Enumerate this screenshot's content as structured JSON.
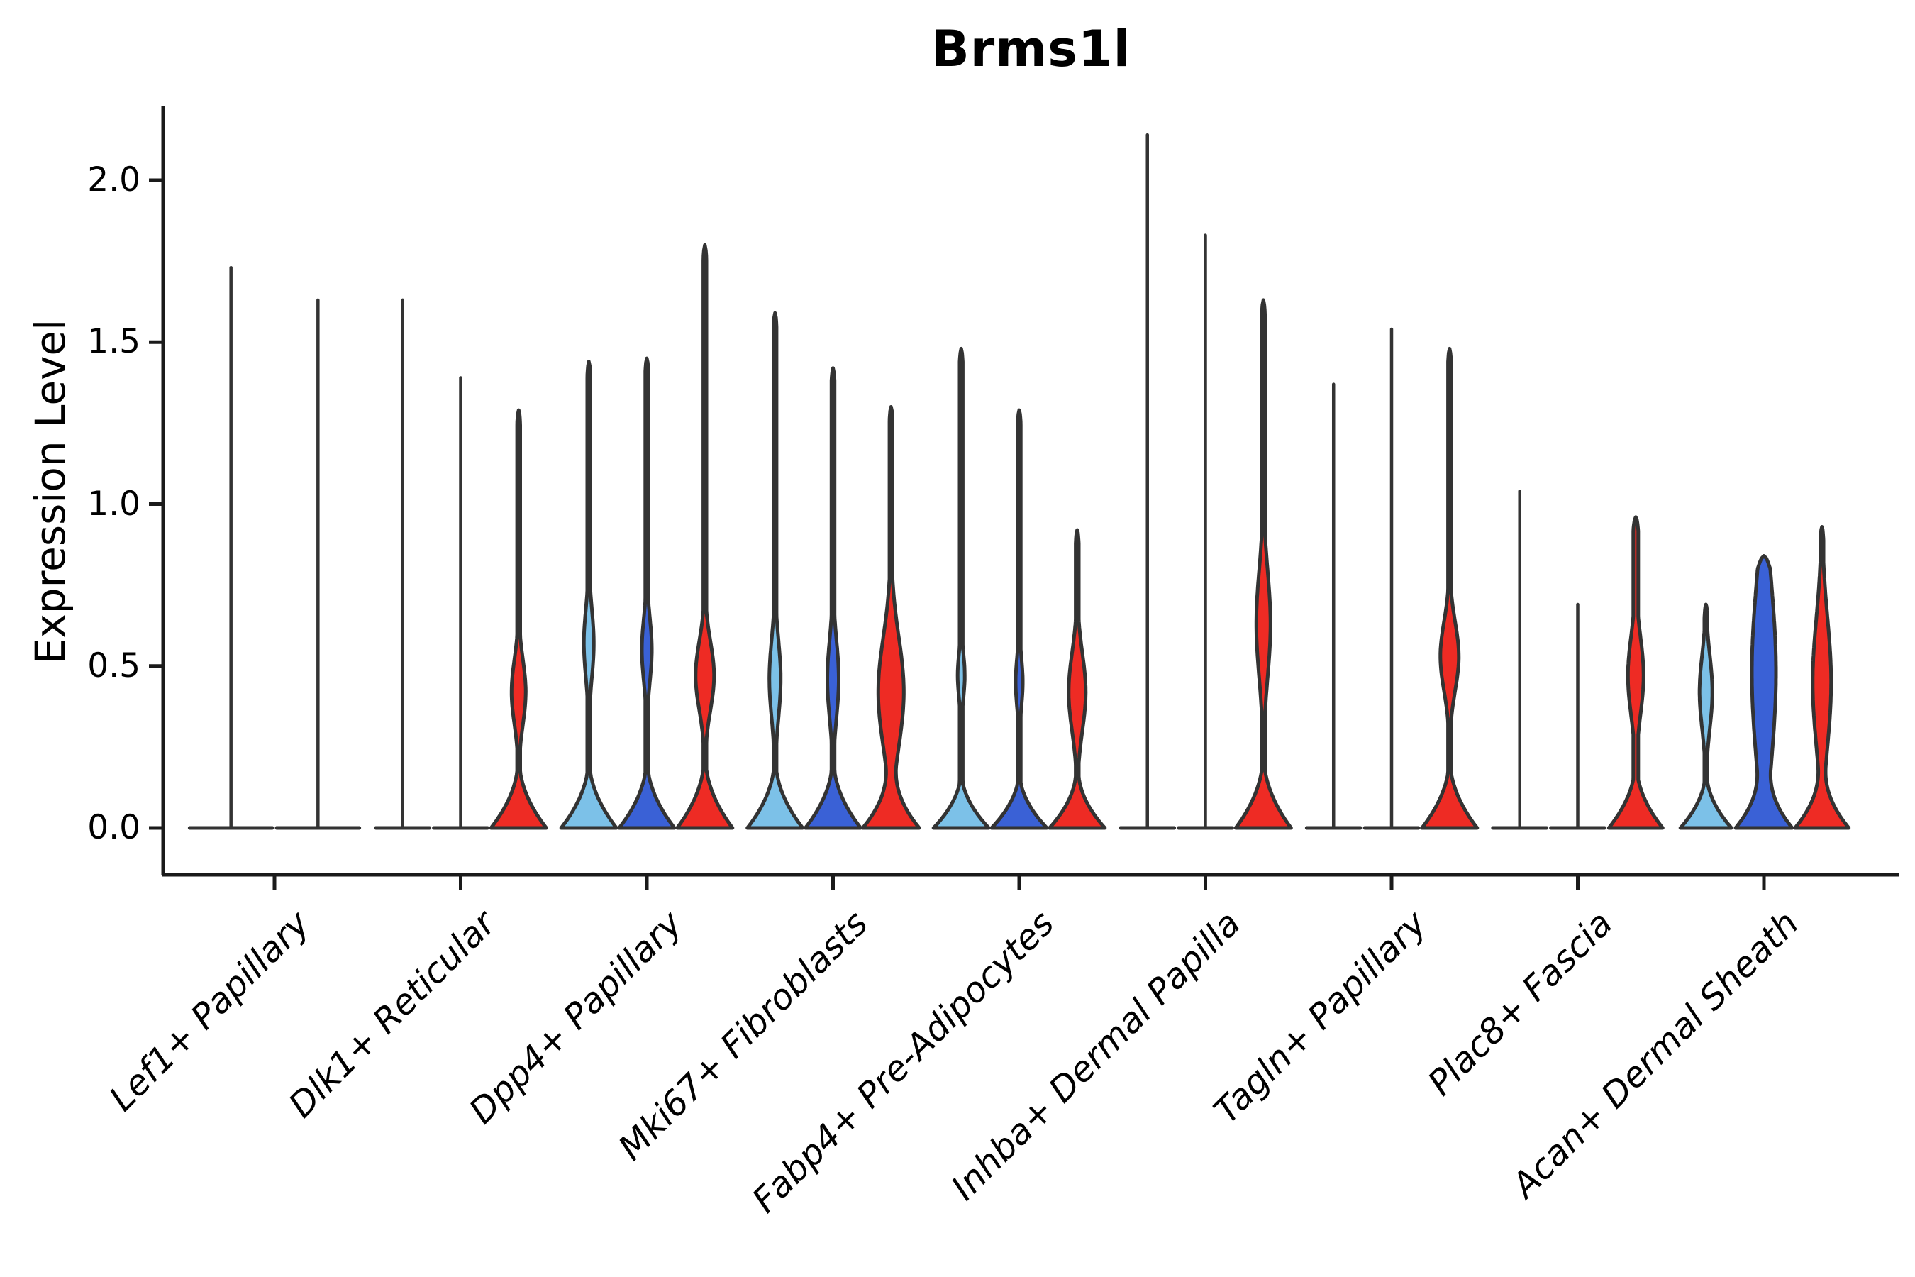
{
  "chart_data": {
    "type": "violin",
    "title": "Brms1l",
    "ylabel": "Expression Level",
    "xlabel": "",
    "yticks": [
      {
        "label": "0.0",
        "value": 0.0
      },
      {
        "label": "0.5",
        "value": 0.5
      },
      {
        "label": "1.0",
        "value": 1.0
      },
      {
        "label": "1.5",
        "value": 1.5
      },
      {
        "label": "2.0",
        "value": 2.0
      }
    ],
    "ylim": [
      -0.14,
      2.27
    ],
    "grid": false,
    "legend": "none",
    "outline_color": "#333333",
    "axis_color": "#1a1a1a",
    "series_colors": {
      "lightblue": "#7CC1E8",
      "darkblue": "#3A61D6",
      "red": "#EE2B24",
      "hidden": "none"
    },
    "categories": [
      "Lef1+ Papillary",
      "Dlk1+ Reticular",
      "Dpp4+ Papillary",
      "Mki67+ Fibroblasts",
      "Fabp4+ Pre-Adipocytes",
      "Inhba+ Dermal Papilla",
      "Tagln+ Papillary",
      "Plac8+ Fascia",
      "Acan+ Dermal Sheath"
    ],
    "groups": [
      {
        "category": "Lef1+ Papillary",
        "violins": [
          {
            "series": "hidden",
            "shape": "spike",
            "max": 1.73
          },
          {
            "series": "hidden",
            "shape": "spike",
            "max": 1.63
          }
        ]
      },
      {
        "category": "Dlk1+ Reticular",
        "violins": [
          {
            "series": "lightblue",
            "shape": "spike",
            "max": 1.63
          },
          {
            "series": "darkblue",
            "shape": "spike",
            "max": 1.39
          },
          {
            "series": "red",
            "shape": "violin",
            "max": 1.29,
            "bulge": {
              "center": 0.42,
              "sigma": 0.14,
              "halfwidth": 10
            },
            "base": {
              "height": 0.22,
              "halfwidth": 39
            }
          }
        ]
      },
      {
        "category": "Dpp4+ Papillary",
        "violins": [
          {
            "series": "lightblue",
            "shape": "violin",
            "max": 1.44,
            "bulge": {
              "center": 0.57,
              "sigma": 0.15,
              "halfwidth": 7
            },
            "base": {
              "height": 0.22,
              "halfwidth": 39
            }
          },
          {
            "series": "darkblue",
            "shape": "violin",
            "max": 1.45,
            "bulge": {
              "center": 0.55,
              "sigma": 0.14,
              "halfwidth": 7
            },
            "base": {
              "height": 0.22,
              "halfwidth": 39
            }
          },
          {
            "series": "red",
            "shape": "violin",
            "max": 1.8,
            "bulge": {
              "center": 0.47,
              "sigma": 0.15,
              "halfwidth": 13
            },
            "base": {
              "height": 0.23,
              "halfwidth": 39
            }
          }
        ]
      },
      {
        "category": "Mki67+ Fibroblasts",
        "violins": [
          {
            "series": "lightblue",
            "shape": "violin",
            "max": 1.59,
            "bulge": {
              "center": 0.46,
              "sigma": 0.17,
              "halfwidth": 8
            },
            "base": {
              "height": 0.22,
              "halfwidth": 39
            }
          },
          {
            "series": "darkblue",
            "shape": "violin",
            "max": 1.42,
            "bulge": {
              "center": 0.46,
              "sigma": 0.17,
              "halfwidth": 8
            },
            "base": {
              "height": 0.22,
              "halfwidth": 39
            }
          },
          {
            "series": "red",
            "shape": "violin",
            "max": 1.3,
            "bulge": {
              "center": 0.42,
              "sigma": 0.24,
              "halfwidth": 18
            },
            "base": {
              "height": 0.2,
              "halfwidth": 39
            }
          }
        ]
      },
      {
        "category": "Fabp4+ Pre-Adipocytes",
        "violins": [
          {
            "series": "lightblue",
            "shape": "violin",
            "max": 1.48,
            "bulge": {
              "center": 0.47,
              "sigma": 0.1,
              "halfwidth": 5
            },
            "base": {
              "height": 0.18,
              "halfwidth": 39
            }
          },
          {
            "series": "darkblue",
            "shape": "violin",
            "max": 1.29,
            "bulge": {
              "center": 0.45,
              "sigma": 0.11,
              "halfwidth": 5
            },
            "base": {
              "height": 0.18,
              "halfwidth": 39
            }
          },
          {
            "series": "red",
            "shape": "violin",
            "max": 0.92,
            "bulge": {
              "center": 0.42,
              "sigma": 0.17,
              "halfwidth": 12
            },
            "base": {
              "height": 0.19,
              "halfwidth": 39
            }
          }
        ]
      },
      {
        "category": "Inhba+ Dermal Papilla",
        "violins": [
          {
            "series": "lightblue",
            "shape": "spike",
            "max": 2.14
          },
          {
            "series": "darkblue",
            "shape": "spike",
            "max": 1.83
          },
          {
            "series": "red",
            "shape": "violin",
            "max": 1.63,
            "bulge": {
              "center": 0.63,
              "sigma": 0.23,
              "halfwidth": 10
            },
            "base": {
              "height": 0.23,
              "halfwidth": 39
            }
          }
        ]
      },
      {
        "category": "Tagln+ Papillary",
        "violins": [
          {
            "series": "lightblue",
            "shape": "spike",
            "max": 1.37
          },
          {
            "series": "darkblue",
            "shape": "spike",
            "max": 1.54
          },
          {
            "series": "red",
            "shape": "violin",
            "max": 1.48,
            "bulge": {
              "center": 0.53,
              "sigma": 0.15,
              "halfwidth": 13
            },
            "base": {
              "height": 0.22,
              "halfwidth": 39
            }
          }
        ]
      },
      {
        "category": "Plac8+ Fascia",
        "violins": [
          {
            "series": "lightblue",
            "shape": "spike",
            "max": 1.04
          },
          {
            "series": "darkblue",
            "shape": "spike",
            "max": 0.69
          },
          {
            "series": "red",
            "shape": "violin",
            "max": 0.96,
            "spike_halfwidth": 3.5,
            "bulge": {
              "center": 0.47,
              "sigma": 0.17,
              "halfwidth": 11
            },
            "base": {
              "height": 0.21,
              "halfwidth": 38
            }
          }
        ]
      },
      {
        "category": "Acan+ Dermal Sheath",
        "violins": [
          {
            "series": "lightblue",
            "shape": "violin",
            "max": 0.69,
            "bulge": {
              "center": 0.42,
              "sigma": 0.16,
              "halfwidth": 9
            },
            "base": {
              "height": 0.18,
              "halfwidth": 36
            }
          },
          {
            "series": "darkblue",
            "shape": "violin",
            "max": 0.84,
            "bulge": {
              "center": 0.48,
              "sigma": 0.4,
              "halfwidth": 17
            },
            "base": {
              "height": 0.18,
              "halfwidth": 36
            }
          },
          {
            "series": "red",
            "shape": "violin",
            "max": 0.93,
            "bulge": {
              "center": 0.45,
              "sigma": 0.28,
              "halfwidth": 13
            },
            "base": {
              "height": 0.19,
              "halfwidth": 37
            }
          }
        ]
      }
    ]
  }
}
